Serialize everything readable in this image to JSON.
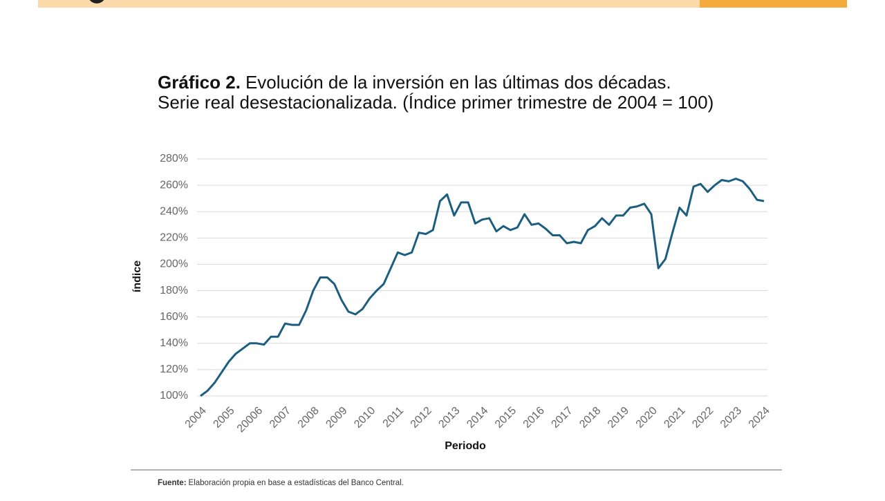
{
  "chart_data": {
    "type": "line",
    "title_label": "Gráfico 2.",
    "title": "Evolución de la inversión en las últimas dos décadas.",
    "subtitle": "Serie real desestacionalizada. (Índice primer trimestre de 2004 = 100)",
    "y_label": "índice",
    "x_label": "Periodo",
    "categories": [
      "2004",
      null,
      null,
      null,
      "2005",
      null,
      null,
      null,
      "20006",
      null,
      null,
      null,
      "2007",
      null,
      null,
      null,
      "2008",
      null,
      null,
      null,
      "2009",
      null,
      null,
      null,
      "2010",
      null,
      null,
      null,
      "2011",
      null,
      null,
      null,
      "2012",
      null,
      null,
      null,
      "2013",
      null,
      null,
      null,
      "2014",
      null,
      null,
      null,
      "2015",
      null,
      null,
      null,
      "2016",
      null,
      null,
      null,
      "2017",
      null,
      null,
      null,
      "2018",
      null,
      null,
      null,
      "2019",
      null,
      null,
      null,
      "2020",
      null,
      null,
      null,
      "2021",
      null,
      null,
      null,
      "2022",
      null,
      null,
      null,
      "2023",
      null,
      null,
      null,
      "2024"
    ],
    "values": [
      100,
      104,
      110,
      118,
      126,
      132,
      136,
      140,
      140,
      139,
      145,
      145,
      155,
      154,
      154,
      165,
      180,
      190,
      190,
      185,
      173,
      164,
      162,
      166,
      174,
      180,
      185,
      197,
      209,
      207,
      209,
      224,
      223,
      226,
      248,
      253,
      237,
      247,
      247,
      231,
      234,
      235,
      225,
      229,
      226,
      228,
      238,
      230,
      231,
      227,
      222,
      222,
      216,
      217,
      216,
      226,
      229,
      235,
      230,
      237,
      237,
      243,
      244,
      246,
      238,
      197,
      204,
      224,
      243,
      237,
      259,
      261,
      255,
      260,
      264,
      263,
      265,
      263,
      257,
      249,
      248
    ],
    "color": "#1c5e80",
    "ylim": [
      100,
      280
    ],
    "yticks": [
      {
        "value": 100,
        "label": "100%"
      },
      {
        "value": 120,
        "label": "120%"
      },
      {
        "value": 140,
        "label": "140%"
      },
      {
        "value": 160,
        "label": "160%"
      },
      {
        "value": 180,
        "label": "180%"
      },
      {
        "value": 200,
        "label": "200%"
      },
      {
        "value": 220,
        "label": "220%"
      },
      {
        "value": 240,
        "label": "240%"
      },
      {
        "value": 260,
        "label": "260%"
      },
      {
        "value": 280,
        "label": "280%"
      }
    ],
    "grid": true
  },
  "footer": {
    "source_label": "Fuente:",
    "source_text": "Elaboración propia en base a estadísticas del Banco Central."
  }
}
